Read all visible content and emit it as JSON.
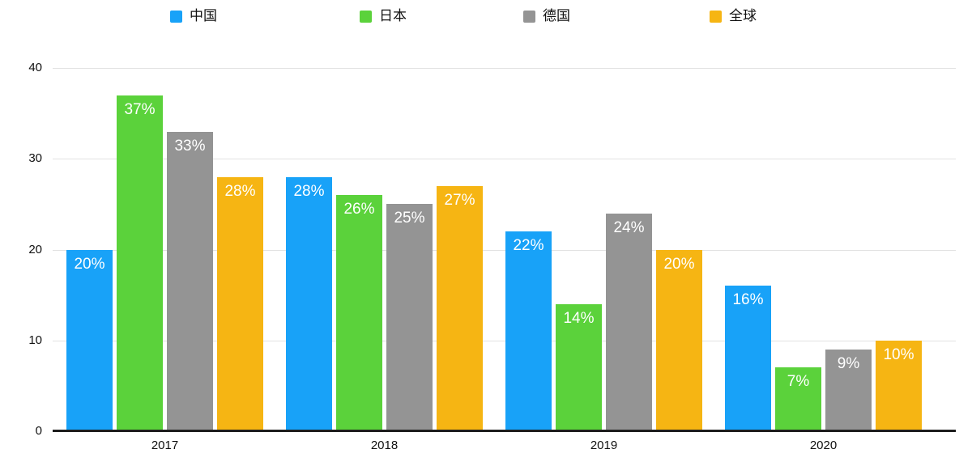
{
  "chart_data": {
    "type": "bar",
    "categories": [
      "2017",
      "2018",
      "2019",
      "2020"
    ],
    "series": [
      {
        "name": "中国",
        "color": "#18A2F8",
        "values": [
          20,
          28,
          22,
          16
        ]
      },
      {
        "name": "日本",
        "color": "#5BD23B",
        "values": [
          37,
          26,
          14,
          7
        ]
      },
      {
        "name": "德国",
        "color": "#949494",
        "values": [
          33,
          25,
          24,
          9
        ]
      },
      {
        "name": "全球",
        "color": "#F6B513",
        "values": [
          28,
          27,
          20,
          10
        ]
      }
    ],
    "bar_labels": [
      [
        "20%",
        "28%",
        "22%",
        "16%"
      ],
      [
        "37%",
        "26%",
        "14%",
        "7%"
      ],
      [
        "33%",
        "25%",
        "24%",
        "9%"
      ],
      [
        "28%",
        "27%",
        "20%",
        "10%"
      ]
    ],
    "value_suffix": "%",
    "title": "",
    "xlabel": "",
    "ylabel": "",
    "ylim": [
      0,
      40
    ],
    "yticks": [
      0,
      10,
      20,
      30,
      40
    ],
    "ytick_labels": [
      "0",
      "10",
      "20",
      "30",
      "40"
    ],
    "grid": true,
    "legend_position": "top",
    "colors": {
      "bar_label_text": "#ffffff",
      "axis_text": "#111111",
      "gridline": "#e2e2e2",
      "baseline": "#1d1d1d",
      "background": "#ffffff"
    }
  }
}
